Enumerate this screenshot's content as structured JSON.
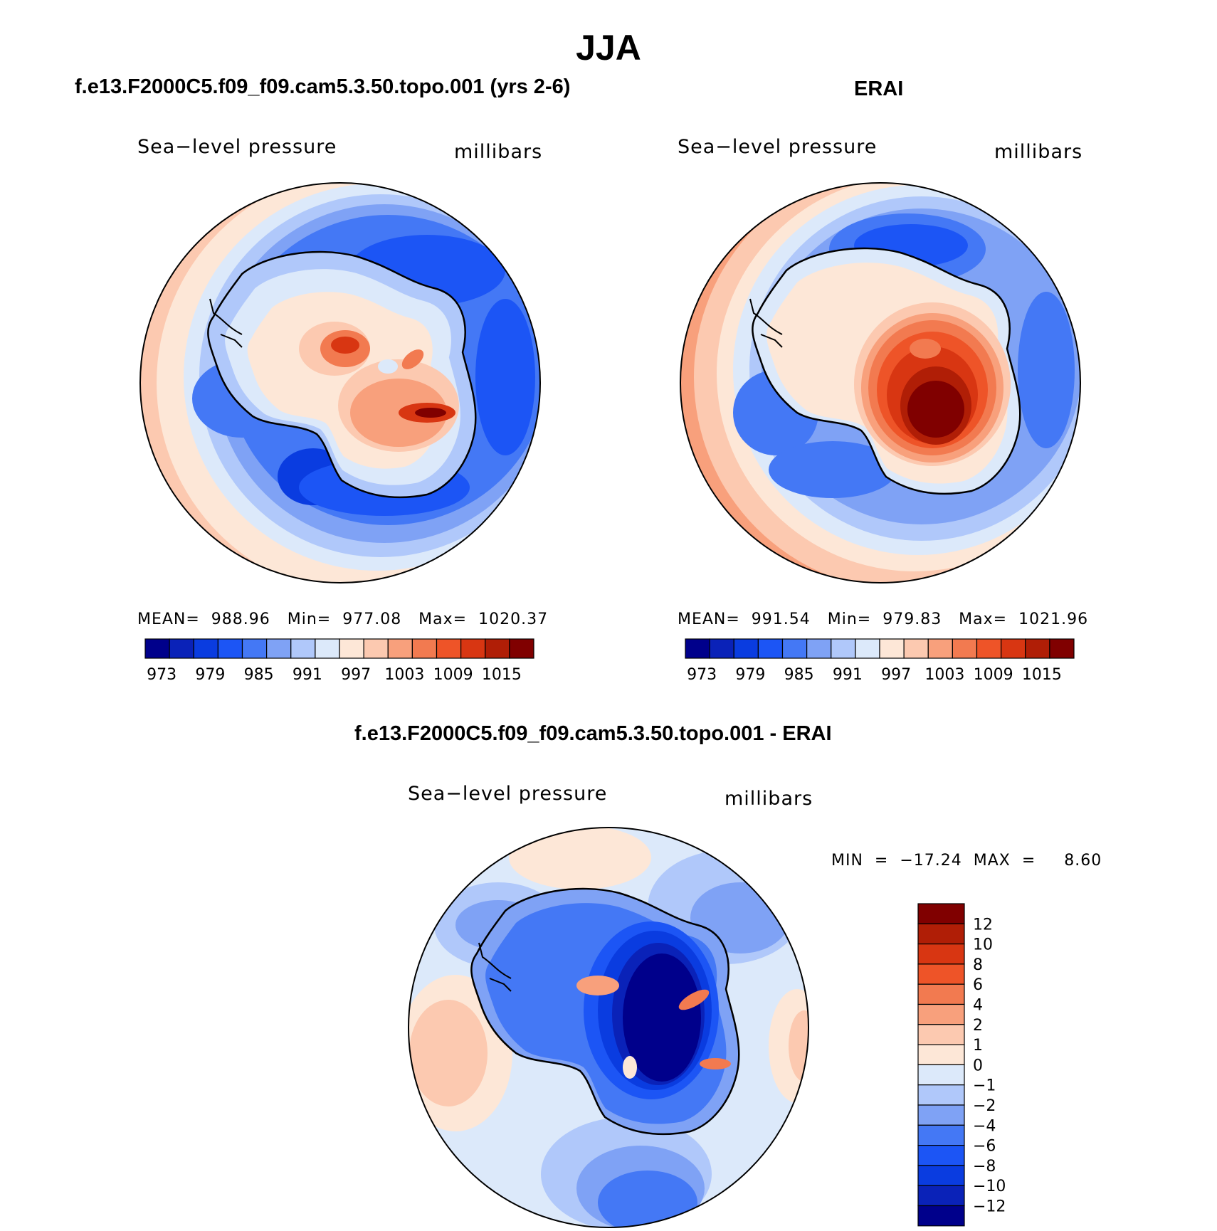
{
  "page": {
    "title": "JJA"
  },
  "panels": [
    {
      "title": "f.e13.F2000C5.f09_f09.cam5.3.50.topo.001 (yrs 2-6)",
      "variable": "Sea−level pressure",
      "units": "millibars",
      "stats": "MEAN=  988.96   Min=  977.08   Max=  1020.37",
      "colorbar": {
        "tick_labels": [
          "973",
          "979",
          "985",
          "991",
          "997",
          "1003",
          "1009",
          "1015"
        ],
        "colors": [
          "#00008b",
          "#0a22b8",
          "#0a3ce0",
          "#1c55f5",
          "#4478f5",
          "#7fa2f5",
          "#b0c8fa",
          "#dce9fa",
          "#fde7d7",
          "#fcc9b0",
          "#f8a07c",
          "#f27a50",
          "#ee5428",
          "#d83612",
          "#b01e06",
          "#800000"
        ]
      }
    },
    {
      "title": "ERAI",
      "variable": "Sea−level pressure",
      "units": "millibars",
      "stats": "MEAN=  991.54   Min=  979.83   Max=  1021.96",
      "colorbar": {
        "tick_labels": [
          "973",
          "979",
          "985",
          "991",
          "997",
          "1003",
          "1009",
          "1015"
        ],
        "colors": [
          "#00008b",
          "#0a22b8",
          "#0a3ce0",
          "#1c55f5",
          "#4478f5",
          "#7fa2f5",
          "#b0c8fa",
          "#dce9fa",
          "#fde7d7",
          "#fcc9b0",
          "#f8a07c",
          "#f27a50",
          "#ee5428",
          "#d83612",
          "#b01e06",
          "#800000"
        ]
      }
    },
    {
      "title": "f.e13.F2000C5.f09_f09.cam5.3.50.topo.001 - ERAI",
      "variable": "Sea−level pressure",
      "units": "millibars",
      "stats": "MIN  =  −17.24  MAX  =     8.60",
      "colorbar": {
        "tick_labels": [
          "12",
          "10",
          "8",
          "6",
          "4",
          "2",
          "1",
          "0",
          "−1",
          "−2",
          "−4",
          "−6",
          "−8",
          "−10",
          "−12"
        ],
        "colors": [
          "#800000",
          "#b01e06",
          "#d83612",
          "#ee5428",
          "#f27a50",
          "#f8a07c",
          "#fcc9b0",
          "#fde7d7",
          "#dce9fa",
          "#b0c8fa",
          "#7fa2f5",
          "#4478f5",
          "#1c55f5",
          "#0a3ce0",
          "#0a22b8",
          "#00008b"
        ]
      }
    }
  ]
}
